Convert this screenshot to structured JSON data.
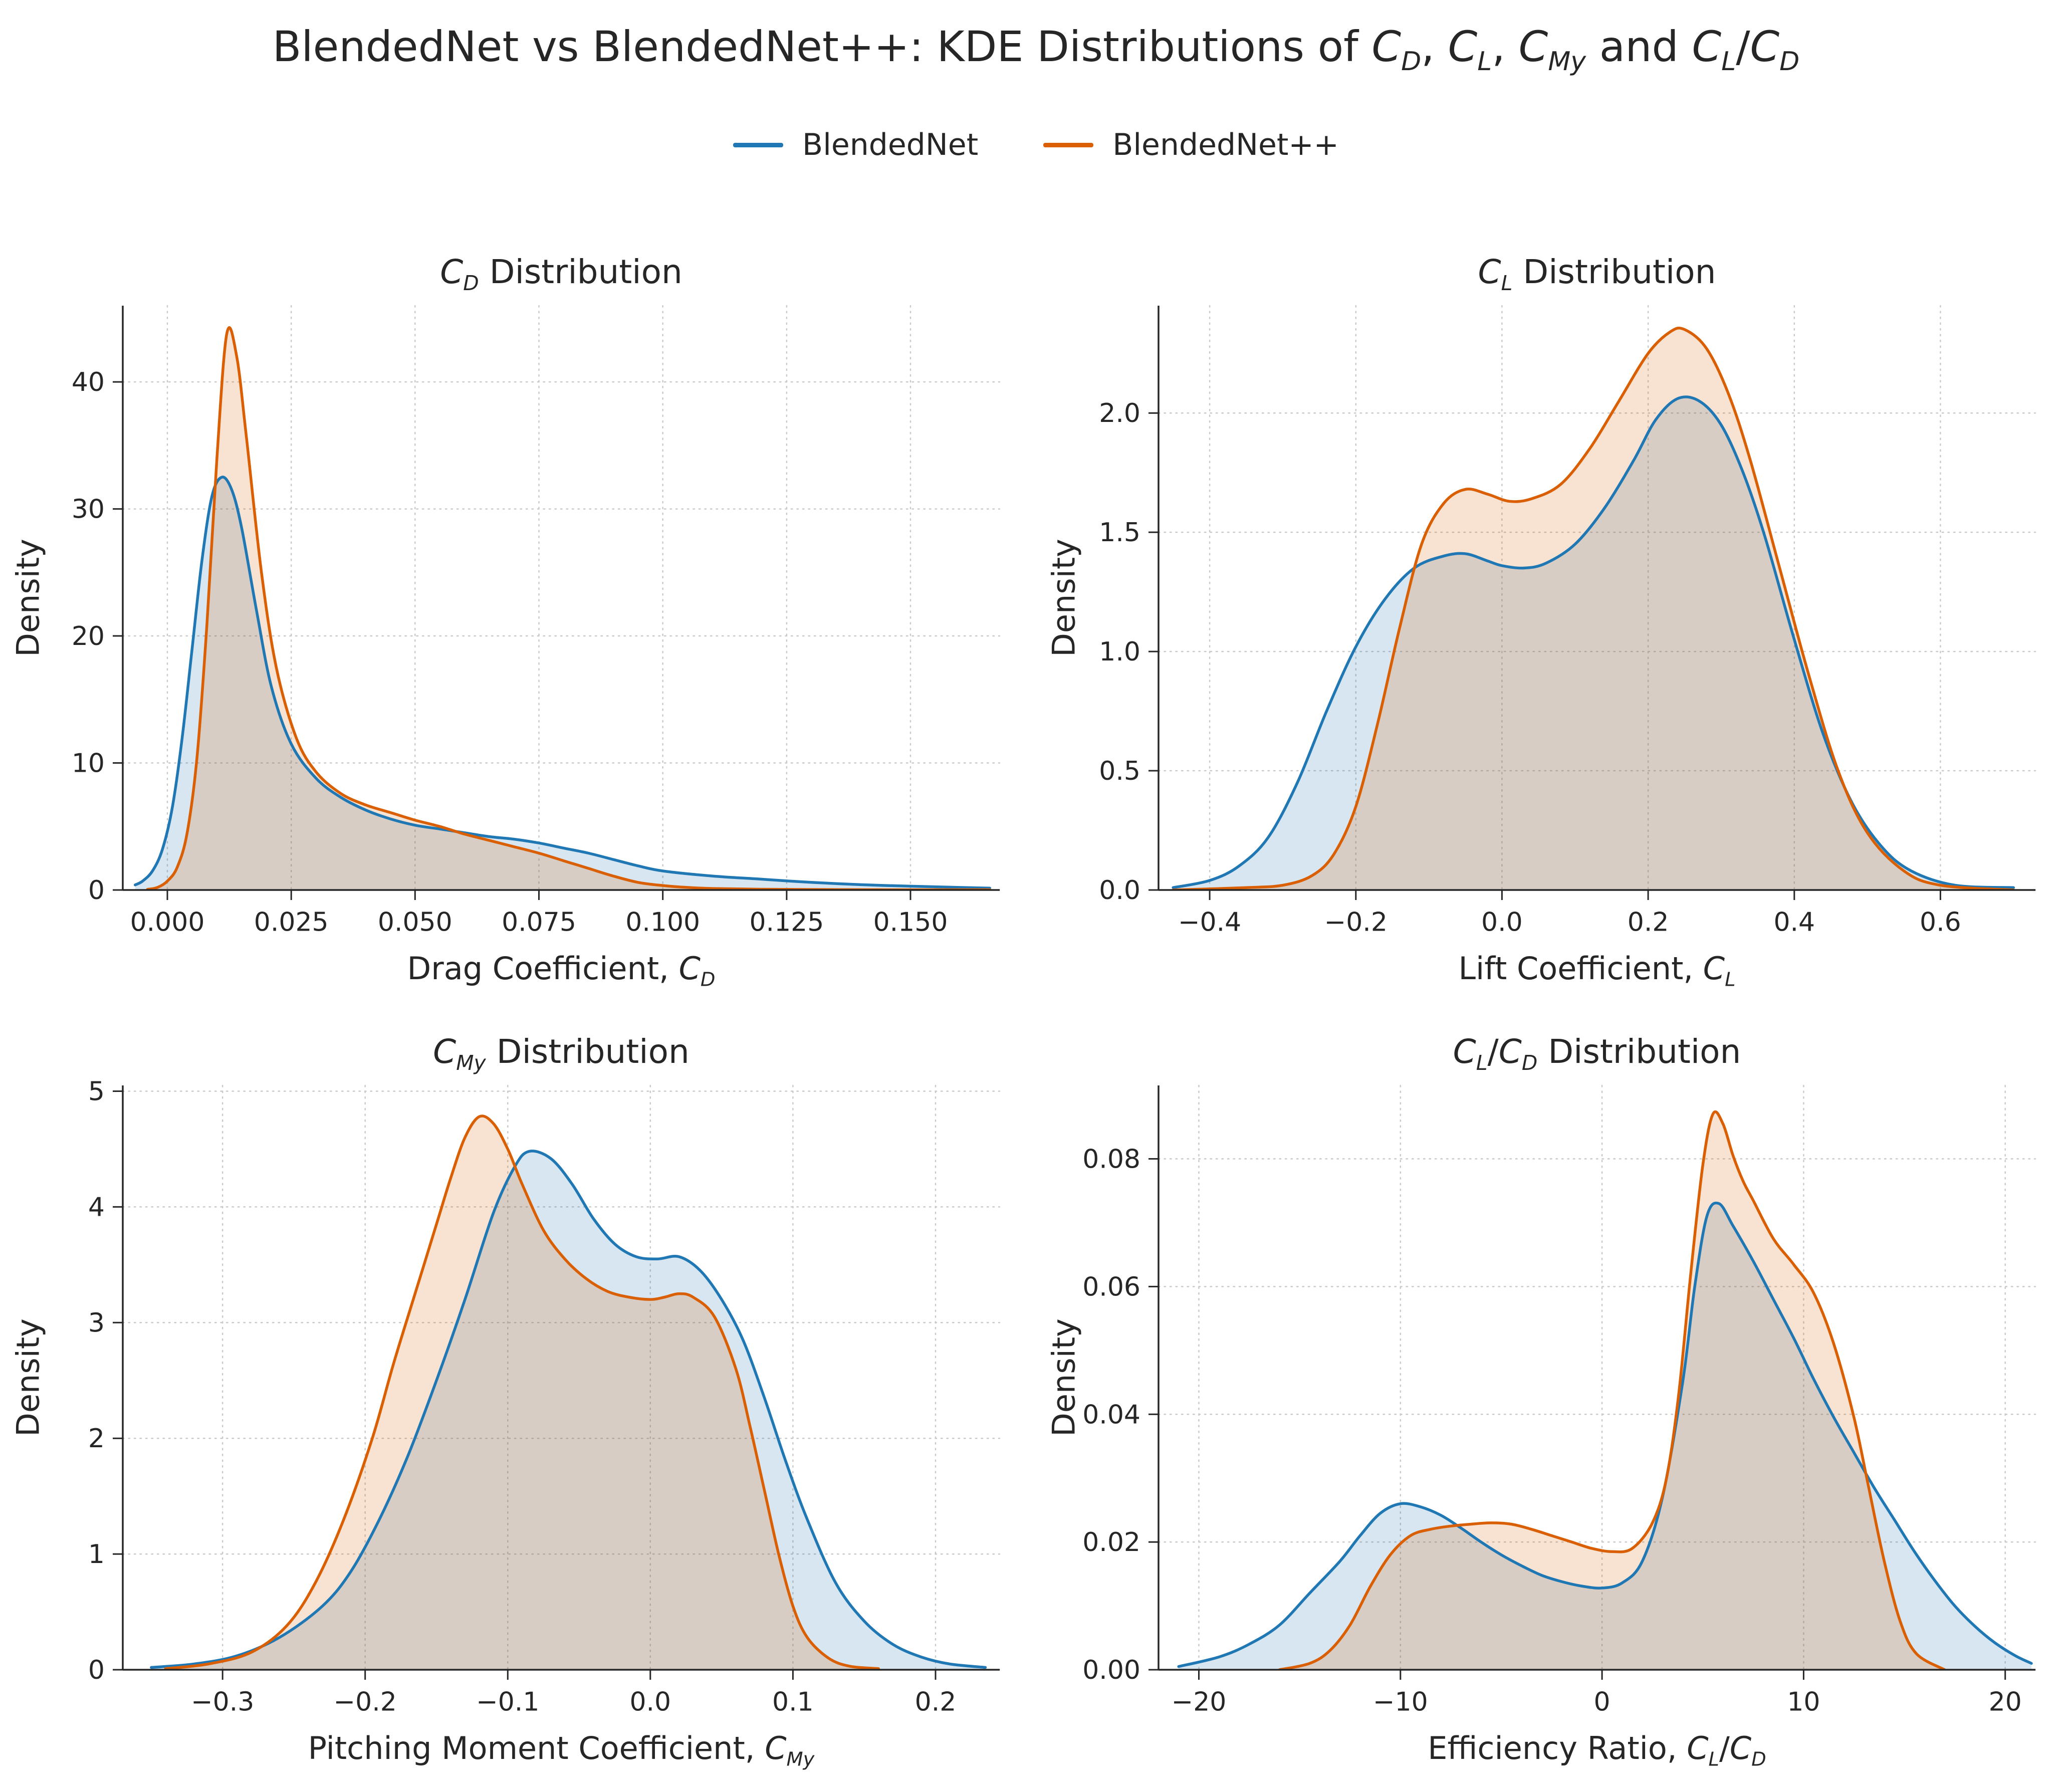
{
  "figure": {
    "title_html": "BlendedNet vs BlendedNet++: KDE Distributions of <i>C<sub>D</sub></i>, <i>C<sub>L</sub></i>, <i>C<sub>My</sub></i> and <i>C<sub>L</sub></i>/<i>C<sub>D</sub></i>",
    "background": "#ffffff",
    "text_color": "#262626",
    "grid_color": "#c9c9c9"
  },
  "legend": {
    "position": "top-center",
    "items": [
      {
        "label": "BlendedNet",
        "color": "#1f77b4"
      },
      {
        "label": "BlendedNet++",
        "color": "#d95f02"
      }
    ]
  },
  "chart_data": [
    {
      "id": "cd",
      "type": "area",
      "title_html": "<i>C<sub>D</sub></i> Distribution",
      "xlabel_html": "Drag Coefficient, <i>C<sub>D</sub></i>",
      "ylabel": "Density",
      "xlim": [
        -0.009,
        0.168
      ],
      "ylim": [
        0,
        46
      ],
      "xticks": [
        0.0,
        0.025,
        0.05,
        0.075,
        0.1,
        0.125,
        0.15
      ],
      "xtick_labels": [
        "0.000",
        "0.025",
        "0.050",
        "0.075",
        "0.100",
        "0.125",
        "0.150"
      ],
      "yticks": [
        0,
        10,
        20,
        30,
        40
      ],
      "ytick_labels": [
        "0",
        "10",
        "20",
        "30",
        "40"
      ],
      "grid": true,
      "series": [
        {
          "name": "BlendedNet",
          "color": "#1f77b4",
          "x": [
            -0.0065,
            -0.005,
            -0.003,
            -0.001,
            0.001,
            0.003,
            0.005,
            0.007,
            0.009,
            0.011,
            0.013,
            0.015,
            0.018,
            0.021,
            0.025,
            0.03,
            0.035,
            0.04,
            0.045,
            0.05,
            0.055,
            0.06,
            0.065,
            0.07,
            0.075,
            0.08,
            0.085,
            0.09,
            0.095,
            0.1,
            0.11,
            0.12,
            0.13,
            0.14,
            0.15,
            0.16,
            0.166
          ],
          "y": [
            0.4,
            0.7,
            1.5,
            3.2,
            6.5,
            12,
            19,
            26,
            31,
            32.5,
            31.5,
            28.5,
            22,
            16,
            11.5,
            8.8,
            7.3,
            6.3,
            5.6,
            5.1,
            4.8,
            4.5,
            4.2,
            4.0,
            3.7,
            3.3,
            2.9,
            2.4,
            1.9,
            1.5,
            1.1,
            0.85,
            0.6,
            0.42,
            0.3,
            0.2,
            0.15
          ]
        },
        {
          "name": "BlendedNet++",
          "color": "#d95f02",
          "x": [
            -0.004,
            -0.002,
            0.0,
            0.002,
            0.004,
            0.006,
            0.008,
            0.01,
            0.012,
            0.014,
            0.016,
            0.019,
            0.022,
            0.026,
            0.03,
            0.035,
            0.04,
            0.045,
            0.05,
            0.055,
            0.06,
            0.065,
            0.07,
            0.075,
            0.08,
            0.085,
            0.09,
            0.095,
            0.1,
            0.105,
            0.11,
            0.12,
            0.135,
            0.15,
            0.166
          ],
          "y": [
            0.05,
            0.2,
            0.7,
            1.8,
            4.5,
            10.5,
            21,
            34,
            43.8,
            42,
            35.5,
            25,
            17.5,
            12,
            9.3,
            7.6,
            6.7,
            6.1,
            5.5,
            5.0,
            4.4,
            3.9,
            3.4,
            2.9,
            2.3,
            1.7,
            1.1,
            0.6,
            0.35,
            0.2,
            0.12,
            0.06,
            0.03,
            0.02,
            0.02
          ]
        }
      ]
    },
    {
      "id": "cl",
      "type": "area",
      "title_html": "<i>C<sub>L</sub></i> Distribution",
      "xlabel_html": "Lift Coefficient, <i>C<sub>L</sub></i>",
      "ylabel": "Density",
      "xlim": [
        -0.47,
        0.73
      ],
      "ylim": [
        0,
        2.45
      ],
      "xticks": [
        -0.4,
        -0.2,
        0.0,
        0.2,
        0.4,
        0.6
      ],
      "xtick_labels": [
        "−0.4",
        "−0.2",
        "0.0",
        "0.2",
        "0.4",
        "0.6"
      ],
      "yticks": [
        0.0,
        0.5,
        1.0,
        1.5,
        2.0
      ],
      "ytick_labels": [
        "0.0",
        "0.5",
        "1.0",
        "1.5",
        "2.0"
      ],
      "grid": true,
      "series": [
        {
          "name": "BlendedNet",
          "color": "#1f77b4",
          "x": [
            -0.45,
            -0.4,
            -0.36,
            -0.32,
            -0.28,
            -0.24,
            -0.2,
            -0.16,
            -0.12,
            -0.08,
            -0.05,
            -0.02,
            0.0,
            0.03,
            0.06,
            0.1,
            0.14,
            0.18,
            0.21,
            0.24,
            0.27,
            0.3,
            0.33,
            0.36,
            0.4,
            0.44,
            0.48,
            0.52,
            0.56,
            0.62,
            0.7
          ],
          "y": [
            0.01,
            0.04,
            0.1,
            0.22,
            0.45,
            0.75,
            1.02,
            1.22,
            1.35,
            1.4,
            1.41,
            1.38,
            1.36,
            1.35,
            1.37,
            1.45,
            1.6,
            1.8,
            1.97,
            2.06,
            2.05,
            1.95,
            1.75,
            1.48,
            1.05,
            0.65,
            0.36,
            0.18,
            0.08,
            0.02,
            0.01
          ]
        },
        {
          "name": "BlendedNet++",
          "color": "#d95f02",
          "x": [
            -0.45,
            -0.35,
            -0.3,
            -0.26,
            -0.23,
            -0.2,
            -0.17,
            -0.14,
            -0.11,
            -0.08,
            -0.05,
            -0.02,
            0.01,
            0.04,
            0.08,
            0.12,
            0.16,
            0.2,
            0.23,
            0.25,
            0.28,
            0.31,
            0.34,
            0.38,
            0.42,
            0.46,
            0.5,
            0.55,
            0.6,
            0.7
          ],
          "y": [
            0.0,
            0.01,
            0.02,
            0.06,
            0.15,
            0.35,
            0.7,
            1.1,
            1.45,
            1.62,
            1.68,
            1.66,
            1.63,
            1.64,
            1.7,
            1.85,
            2.05,
            2.25,
            2.34,
            2.35,
            2.27,
            2.08,
            1.8,
            1.35,
            0.9,
            0.5,
            0.24,
            0.08,
            0.02,
            0.0
          ]
        }
      ]
    },
    {
      "id": "cmy",
      "type": "area",
      "title_html": "<i>C<sub>My</sub></i> Distribution",
      "xlabel_html": "Pitching Moment Coefficient, <i>C<sub>My</sub></i>",
      "ylabel": "Density",
      "xlim": [
        -0.37,
        0.245
      ],
      "ylim": [
        0,
        5.05
      ],
      "xticks": [
        -0.3,
        -0.2,
        -0.1,
        0.0,
        0.1,
        0.2
      ],
      "xtick_labels": [
        "−0.3",
        "−0.2",
        "−0.1",
        "0.0",
        "0.1",
        "0.2"
      ],
      "yticks": [
        0,
        1,
        2,
        3,
        4,
        5
      ],
      "ytick_labels": [
        "0",
        "1",
        "2",
        "3",
        "4",
        "5"
      ],
      "grid": true,
      "series": [
        {
          "name": "BlendedNet",
          "color": "#1f77b4",
          "x": [
            -0.35,
            -0.32,
            -0.29,
            -0.26,
            -0.23,
            -0.21,
            -0.19,
            -0.17,
            -0.15,
            -0.13,
            -0.11,
            -0.095,
            -0.085,
            -0.07,
            -0.055,
            -0.04,
            -0.025,
            -0.01,
            0.005,
            0.02,
            0.035,
            0.05,
            0.065,
            0.08,
            0.095,
            0.11,
            0.13,
            0.15,
            0.17,
            0.19,
            0.21,
            0.235
          ],
          "y": [
            0.02,
            0.05,
            0.12,
            0.28,
            0.55,
            0.85,
            1.3,
            1.85,
            2.5,
            3.2,
            3.95,
            4.35,
            4.48,
            4.42,
            4.2,
            3.9,
            3.68,
            3.57,
            3.55,
            3.57,
            3.45,
            3.2,
            2.85,
            2.35,
            1.8,
            1.3,
            0.75,
            0.42,
            0.22,
            0.11,
            0.05,
            0.02
          ]
        },
        {
          "name": "BlendedNet++",
          "color": "#d95f02",
          "x": [
            -0.34,
            -0.31,
            -0.28,
            -0.255,
            -0.235,
            -0.215,
            -0.195,
            -0.18,
            -0.165,
            -0.15,
            -0.14,
            -0.13,
            -0.12,
            -0.11,
            -0.1,
            -0.09,
            -0.075,
            -0.06,
            -0.045,
            -0.03,
            -0.015,
            0.0,
            0.01,
            0.02,
            0.03,
            0.045,
            0.06,
            0.07,
            0.08,
            0.09,
            0.1,
            0.11,
            0.125,
            0.14,
            0.16
          ],
          "y": [
            0.01,
            0.05,
            0.15,
            0.38,
            0.75,
            1.3,
            2.0,
            2.65,
            3.25,
            3.85,
            4.25,
            4.6,
            4.78,
            4.72,
            4.5,
            4.2,
            3.8,
            3.55,
            3.38,
            3.27,
            3.22,
            3.2,
            3.22,
            3.25,
            3.22,
            3.05,
            2.6,
            2.1,
            1.55,
            1.0,
            0.55,
            0.28,
            0.1,
            0.03,
            0.01
          ]
        }
      ]
    },
    {
      "id": "clcd",
      "type": "area",
      "title_html": "<i>C<sub>L</sub></i>/<i>C<sub>D</sub></i> Distribution",
      "xlabel_html": "Efficiency Ratio, <i>C<sub>L</sub></i>/<i>C<sub>D</sub></i>",
      "ylabel": "Density",
      "xlim": [
        -22,
        21.5
      ],
      "ylim": [
        0,
        0.0915
      ],
      "xticks": [
        -20,
        -10,
        0,
        10,
        20
      ],
      "xtick_labels": [
        "−20",
        "−10",
        "0",
        "10",
        "20"
      ],
      "yticks": [
        0.0,
        0.02,
        0.04,
        0.06,
        0.08
      ],
      "ytick_labels": [
        "0.00",
        "0.02",
        "0.04",
        "0.06",
        "0.08"
      ],
      "grid": true,
      "series": [
        {
          "name": "BlendedNet",
          "color": "#1f77b4",
          "x": [
            -21,
            -19,
            -17.5,
            -16,
            -14.5,
            -13,
            -12,
            -11,
            -10,
            -9,
            -8,
            -7,
            -6,
            -5,
            -4,
            -3,
            -2,
            -1,
            0,
            1,
            2,
            3,
            4,
            4.6,
            5.2,
            5.8,
            6.5,
            7.5,
            8.5,
            9.5,
            10.5,
            11.5,
            12.5,
            13.5,
            14.5,
            15.5,
            16.5,
            17.5,
            18.5,
            19.5,
            20.5,
            21.3
          ],
          "y": [
            0.0005,
            0.002,
            0.004,
            0.007,
            0.012,
            0.017,
            0.021,
            0.0245,
            0.026,
            0.0255,
            0.0242,
            0.0222,
            0.02,
            0.018,
            0.0163,
            0.0148,
            0.0138,
            0.0131,
            0.0128,
            0.0136,
            0.017,
            0.027,
            0.045,
            0.06,
            0.071,
            0.073,
            0.0695,
            0.064,
            0.058,
            0.052,
            0.0455,
            0.0395,
            0.034,
            0.0285,
            0.0235,
            0.0185,
            0.014,
            0.01,
            0.0068,
            0.0042,
            0.0022,
            0.001
          ]
        },
        {
          "name": "BlendedNet++",
          "color": "#d95f02",
          "x": [
            -16,
            -14.5,
            -13.5,
            -12.5,
            -11.5,
            -10.5,
            -9.5,
            -8.5,
            -7.5,
            -6.5,
            -5.5,
            -4.5,
            -3.5,
            -2.5,
            -1.5,
            -0.5,
            0.5,
            1.5,
            2.5,
            3.2,
            3.8,
            4.4,
            5.0,
            5.5,
            6.0,
            6.5,
            7.0,
            7.5,
            8.5,
            9.5,
            10.5,
            11.5,
            12.5,
            13.2,
            14.0,
            14.8,
            15.6,
            17
          ],
          "y": [
            0.0,
            0.001,
            0.003,
            0.007,
            0.013,
            0.018,
            0.021,
            0.022,
            0.0225,
            0.0228,
            0.023,
            0.0228,
            0.022,
            0.021,
            0.02,
            0.019,
            0.0185,
            0.019,
            0.023,
            0.03,
            0.043,
            0.062,
            0.079,
            0.087,
            0.0855,
            0.0805,
            0.0765,
            0.0735,
            0.0675,
            0.0635,
            0.059,
            0.051,
            0.0395,
            0.029,
            0.017,
            0.0075,
            0.0025,
            0.0
          ]
        }
      ]
    }
  ]
}
